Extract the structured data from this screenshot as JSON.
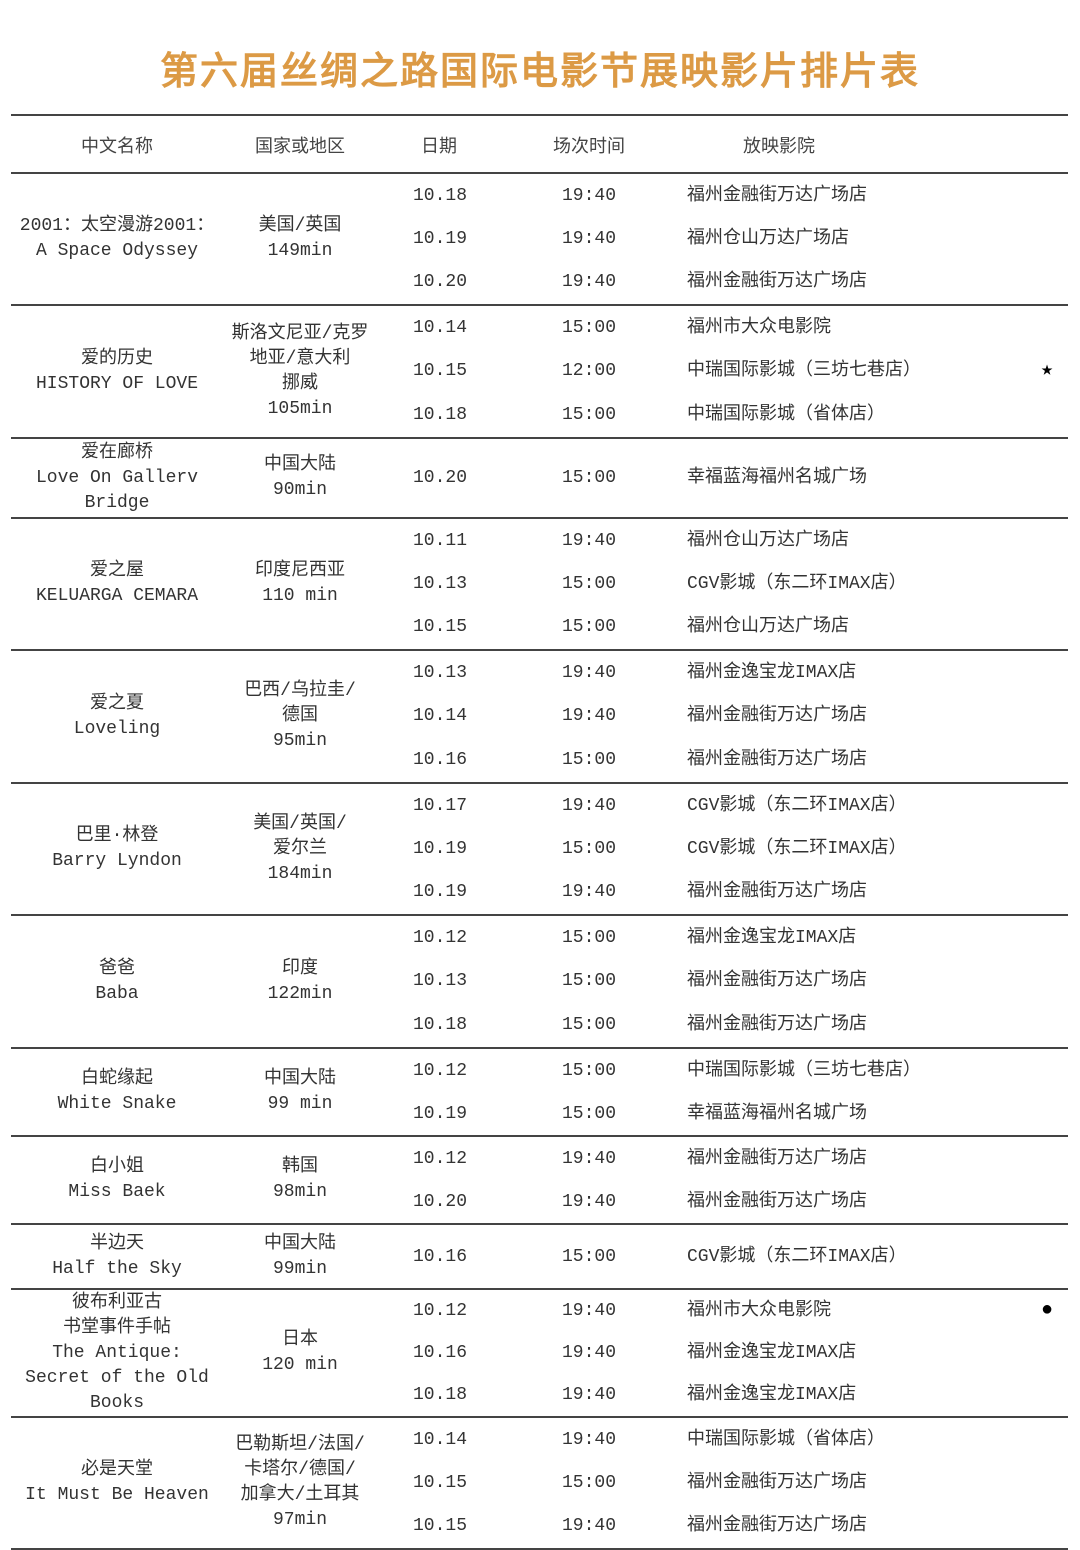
{
  "title": "第六届丝绸之路国际电影节展映影片排片表",
  "headers": [
    "中文名称",
    "国家或地区",
    "日期",
    "场次时间",
    "放映影院"
  ],
  "films": [
    {
      "name": [
        "2001：太空漫游2001：",
        "A Space Odyssey"
      ],
      "country": [
        "美国/英国",
        "149min"
      ],
      "sessions": [
        {
          "date": "10.18",
          "time": "19:40",
          "cinema": "福州金融街万达广场店",
          "mark": ""
        },
        {
          "date": "10.19",
          "time": "19:40",
          "cinema": "福州仓山万达广场店",
          "mark": ""
        },
        {
          "date": "10.20",
          "time": "19:40",
          "cinema": "福州金融街万达广场店",
          "mark": ""
        }
      ]
    },
    {
      "name": [
        "爱的历史",
        "HISTORY OF LOVE"
      ],
      "country": [
        "斯洛文尼亚/克罗",
        "地亚/意大利",
        "挪威",
        "105min"
      ],
      "sessions": [
        {
          "date": "10.14",
          "time": "15:00",
          "cinema": "福州市大众电影院",
          "mark": ""
        },
        {
          "date": "10.15",
          "time": "12:00",
          "cinema": "中瑞国际影城（三坊七巷店）",
          "mark": "★"
        },
        {
          "date": "10.18",
          "time": "15:00",
          "cinema": "中瑞国际影城（省体店）",
          "mark": ""
        }
      ]
    },
    {
      "name": [
        "爱在廊桥",
        "Love On Gallerv",
        "Bridge"
      ],
      "country": [
        "中国大陆",
        "90min"
      ],
      "sessions": [
        {
          "date": "10.20",
          "time": "15:00",
          "cinema": "幸福蓝海福州名城广场",
          "mark": ""
        }
      ]
    },
    {
      "name": [
        "爱之屋",
        "KELUARGA CEMARA"
      ],
      "country": [
        "印度尼西亚",
        "110 min"
      ],
      "sessions": [
        {
          "date": "10.11",
          "time": "19:40",
          "cinema": "福州仓山万达广场店",
          "mark": ""
        },
        {
          "date": "10.13",
          "time": "15:00",
          "cinema": "CGV影城（东二环IMAX店）",
          "mark": ""
        },
        {
          "date": "10.15",
          "time": "15:00",
          "cinema": "福州仓山万达广场店",
          "mark": ""
        }
      ]
    },
    {
      "name": [
        "爱之夏",
        "Loveling"
      ],
      "country": [
        "巴西/乌拉圭/",
        "德国",
        "95min"
      ],
      "sessions": [
        {
          "date": "10.13",
          "time": "19:40",
          "cinema": "福州金逸宝龙IMAX店",
          "mark": ""
        },
        {
          "date": "10.14",
          "time": "19:40",
          "cinema": "福州金融街万达广场店",
          "mark": ""
        },
        {
          "date": "10.16",
          "time": "15:00",
          "cinema": "福州金融街万达广场店",
          "mark": ""
        }
      ]
    },
    {
      "name": [
        "巴里·林登",
        "Barry Lyndon"
      ],
      "country": [
        "美国/英国/",
        "爱尔兰",
        "184min"
      ],
      "sessions": [
        {
          "date": "10.17",
          "time": "19:40",
          "cinema": "CGV影城（东二环IMAX店）",
          "mark": ""
        },
        {
          "date": "10.19",
          "time": "15:00",
          "cinema": "CGV影城（东二环IMAX店）",
          "mark": ""
        },
        {
          "date": "10.19",
          "time": "19:40",
          "cinema": "福州金融街万达广场店",
          "mark": ""
        }
      ]
    },
    {
      "name": [
        "爸爸",
        "Baba"
      ],
      "country": [
        "印度",
        "122min"
      ],
      "sessions": [
        {
          "date": "10.12",
          "time": "15:00",
          "cinema": "福州金逸宝龙IMAX店",
          "mark": ""
        },
        {
          "date": "10.13",
          "time": "15:00",
          "cinema": "福州金融街万达广场店",
          "mark": ""
        },
        {
          "date": "10.18",
          "time": "15:00",
          "cinema": "福州金融街万达广场店",
          "mark": ""
        }
      ]
    },
    {
      "name": [
        "白蛇缘起",
        "White Snake"
      ],
      "country": [
        "中国大陆",
        "99 min"
      ],
      "sessions": [
        {
          "date": "10.12",
          "time": "15:00",
          "cinema": "中瑞国际影城（三坊七巷店）",
          "mark": ""
        },
        {
          "date": "10.19",
          "time": "15:00",
          "cinema": "幸福蓝海福州名城广场",
          "mark": ""
        }
      ]
    },
    {
      "name": [
        "白小姐",
        "Miss Baek"
      ],
      "country": [
        "韩国",
        "98min"
      ],
      "sessions": [
        {
          "date": "10.12",
          "time": "19:40",
          "cinema": "福州金融街万达广场店",
          "mark": ""
        },
        {
          "date": "10.20",
          "time": "19:40",
          "cinema": "福州金融街万达广场店",
          "mark": ""
        }
      ]
    },
    {
      "name": [
        "半边天",
        "Half the Sky"
      ],
      "country": [
        "中国大陆",
        "99min"
      ],
      "sessions": [
        {
          "date": "10.16",
          "time": "15:00",
          "cinema": "CGV影城（东二环IMAX店）",
          "mark": ""
        }
      ]
    },
    {
      "name": [
        "彼布利亚古",
        "书堂事件手帖",
        "The Antique:",
        "Secret of the Old",
        "Books"
      ],
      "country": [
        "日本",
        "120 min"
      ],
      "sessions": [
        {
          "date": "10.12",
          "time": "19:40",
          "cinema": "福州市大众电影院",
          "mark": "●"
        },
        {
          "date": "10.16",
          "time": "19:40",
          "cinema": "福州金逸宝龙IMAX店",
          "mark": ""
        },
        {
          "date": "10.18",
          "time": "19:40",
          "cinema": "福州金逸宝龙IMAX店",
          "mark": ""
        }
      ]
    },
    {
      "name": [
        "必是天堂",
        "It Must Be Heaven"
      ],
      "country": [
        "巴勒斯坦/法国/",
        "卡塔尔/德国/",
        "加拿大/土耳其",
        "97min"
      ],
      "sessions": [
        {
          "date": "10.14",
          "time": "19:40",
          "cinema": "中瑞国际影城（省体店）",
          "mark": ""
        },
        {
          "date": "10.15",
          "time": "15:00",
          "cinema": "福州金融街万达广场店",
          "mark": ""
        },
        {
          "date": "10.15",
          "time": "19:40",
          "cinema": "福州金融街万达广场店",
          "mark": ""
        }
      ]
    }
  ]
}
